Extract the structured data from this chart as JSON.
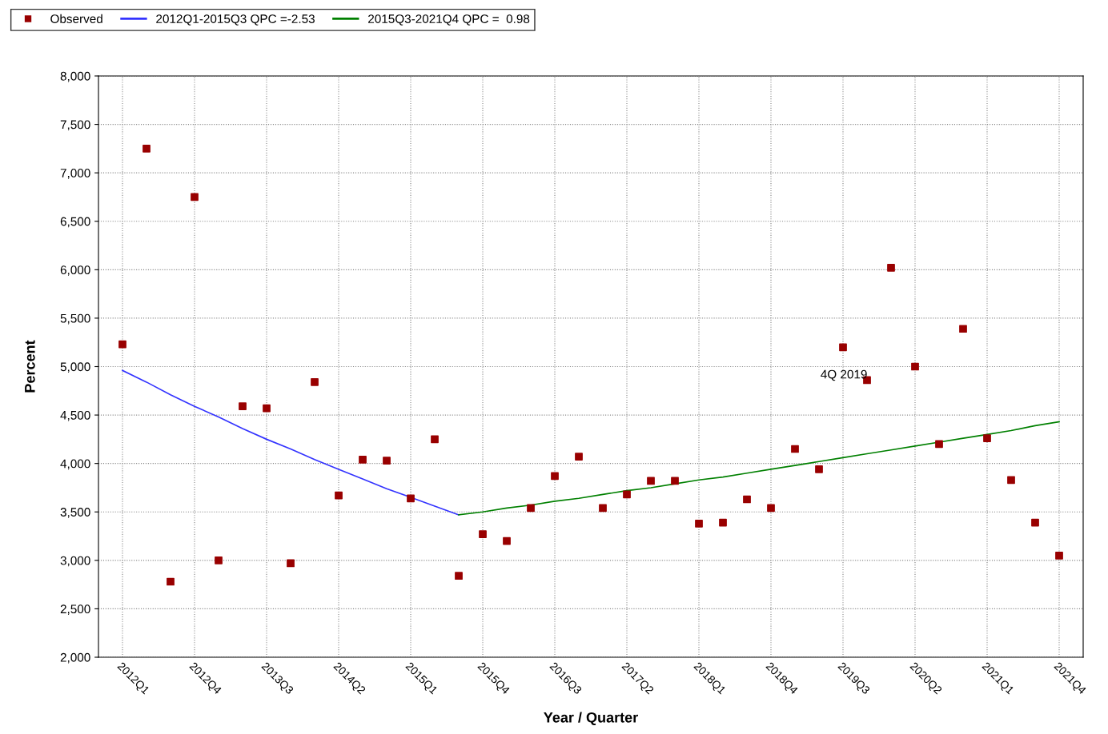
{
  "chart_data": {
    "type": "scatter",
    "xlabel": "Year / Quarter",
    "ylabel": "Percent",
    "categories": [
      "2012Q1",
      null,
      null,
      "2012Q4",
      null,
      null,
      "2013Q3",
      null,
      null,
      "2014Q2",
      null,
      null,
      "2015Q1",
      null,
      null,
      "2015Q4",
      null,
      null,
      "2016Q3",
      null,
      null,
      "2017Q2",
      null,
      null,
      "2018Q1",
      null,
      null,
      "2018Q4",
      null,
      null,
      "2019Q3",
      null,
      null,
      "2020Q2",
      null,
      null,
      "2021Q1",
      null,
      null,
      "2021Q4"
    ],
    "series": [
      {
        "name": "Observed",
        "marker": "square",
        "color": "#990000",
        "values": [
          5230,
          7250,
          2780,
          6750,
          3000,
          4590,
          4570,
          2970,
          4840,
          3670,
          4040,
          4030,
          3640,
          4250,
          2840,
          3270,
          3200,
          3540,
          3870,
          4070,
          3540,
          3680,
          3820,
          3820,
          3380,
          3390,
          3630,
          3540,
          4150,
          3940,
          5200,
          4860,
          6020,
          5000,
          4200,
          5390,
          4260,
          3830,
          3390,
          3050
        ]
      },
      {
        "name": "2012Q1-2015Q3 QPC =-2.53",
        "type": "line",
        "line_style": "solid",
        "marker": "none",
        "color": "#3333ff",
        "values": [
          4960,
          4840,
          4710,
          4590,
          4480,
          4360,
          4250,
          4150,
          4040,
          3940,
          3840,
          3740,
          3650,
          3560,
          3470,
          null,
          null,
          null,
          null,
          null,
          null,
          null,
          null,
          null,
          null,
          null,
          null,
          null,
          null,
          null,
          null,
          null,
          null,
          null,
          null,
          null,
          null,
          null,
          null,
          null
        ]
      },
      {
        "name": "2015Q3-2021Q4 QPC =  0.98",
        "type": "line",
        "line_style": "solid",
        "marker": "none",
        "color": "#008000",
        "values": [
          null,
          null,
          null,
          null,
          null,
          null,
          null,
          null,
          null,
          null,
          null,
          null,
          null,
          null,
          3470,
          3500,
          3540,
          3570,
          3610,
          3640,
          3680,
          3720,
          3750,
          3790,
          3830,
          3860,
          3900,
          3940,
          3980,
          4020,
          4060,
          4100,
          4140,
          4180,
          4220,
          4260,
          4300,
          4340,
          4390,
          4430
        ]
      }
    ],
    "ylim": [
      2000,
      8000
    ],
    "yticks": [
      {
        "value": 2000,
        "label": "2,000"
      },
      {
        "value": 2500,
        "label": "2,500"
      },
      {
        "value": 3000,
        "label": "3,000"
      },
      {
        "value": 3500,
        "label": "3,500"
      },
      {
        "value": 4000,
        "label": "4,000"
      },
      {
        "value": 4500,
        "label": "4,500"
      },
      {
        "value": 5000,
        "label": "5,000"
      },
      {
        "value": 5500,
        "label": "5,500"
      },
      {
        "value": 6000,
        "label": "6,000"
      },
      {
        "value": 6500,
        "label": "6,500"
      },
      {
        "value": 7000,
        "label": "7,000"
      },
      {
        "value": 7500,
        "label": "7,500"
      },
      {
        "value": 8000,
        "label": "8,000"
      }
    ],
    "annotations": [
      "4Q 2019"
    ],
    "grid": true,
    "legend": "top left"
  }
}
